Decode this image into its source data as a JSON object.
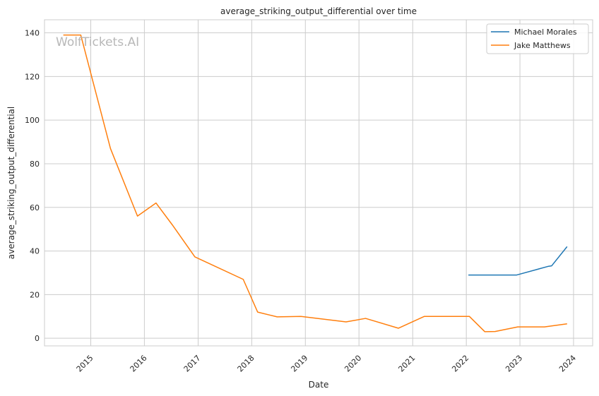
{
  "chart_data": {
    "type": "line",
    "title": "average_striking_output_differential over time",
    "xlabel": "Date",
    "ylabel": "average_striking_output_differential",
    "watermark": "WolfTickets.AI",
    "xlim": [
      "2014-02-20",
      "2024-05-10"
    ],
    "ylim": [
      -3.5,
      146
    ],
    "x_ticks": [
      "2015",
      "2016",
      "2017",
      "2018",
      "2019",
      "2020",
      "2021",
      "2022",
      "2023",
      "2024"
    ],
    "y_ticks": [
      0,
      20,
      40,
      60,
      80,
      100,
      120,
      140
    ],
    "grid": true,
    "legend_position": "top-right",
    "series": [
      {
        "name": "Michael Morales",
        "color": "#1f77b4",
        "points": [
          [
            "2022-01-15",
            29.0
          ],
          [
            "2022-12-10",
            29.0
          ],
          [
            "2023-07-15",
            33.0
          ],
          [
            "2023-08-05",
            33.2
          ],
          [
            "2023-11-18",
            42.0
          ]
        ]
      },
      {
        "name": "Jake Matthews",
        "color": "#ff7f0e",
        "points": [
          [
            "2014-06-28",
            139.0
          ],
          [
            "2014-10-25",
            139.0
          ],
          [
            "2015-05-15",
            87.0
          ],
          [
            "2015-11-15",
            56.0
          ],
          [
            "2016-03-20",
            62.0
          ],
          [
            "2016-07-09",
            52.0
          ],
          [
            "2016-12-10",
            37.3
          ],
          [
            "2017-11-04",
            27.0
          ],
          [
            "2018-02-10",
            12.0
          ],
          [
            "2018-06-23",
            9.8
          ],
          [
            "2018-12-02",
            10.0
          ],
          [
            "2019-10-05",
            7.5
          ],
          [
            "2020-02-15",
            9.1
          ],
          [
            "2020-09-26",
            4.6
          ],
          [
            "2021-03-20",
            10.0
          ],
          [
            "2022-01-22",
            10.0
          ],
          [
            "2022-05-07",
            3.0
          ],
          [
            "2022-07-16",
            3.1
          ],
          [
            "2022-12-17",
            5.2
          ],
          [
            "2023-06-17",
            5.2
          ],
          [
            "2023-11-18",
            6.6
          ]
        ]
      }
    ]
  }
}
